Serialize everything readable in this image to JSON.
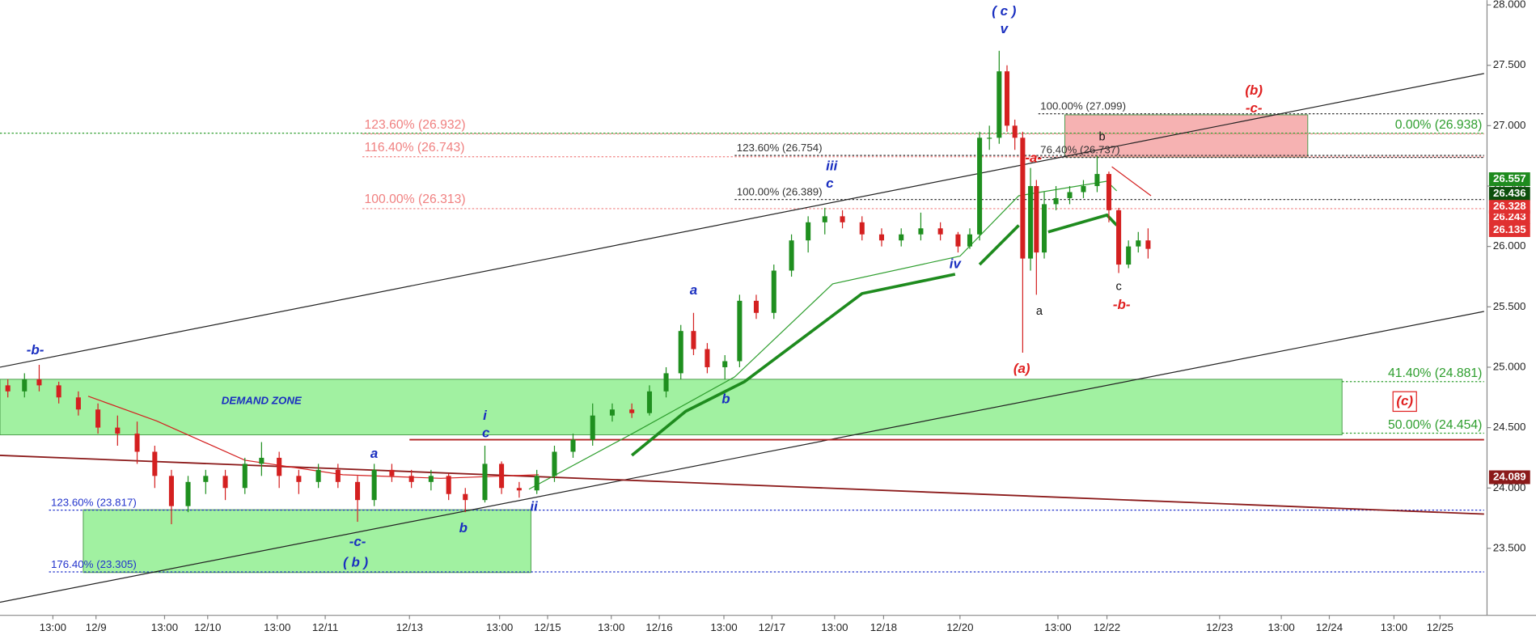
{
  "chart_data": {
    "type": "candlestick",
    "xlim": [
      0,
      1515
    ],
    "ylim": [
      22.97,
      28.04
    ],
    "xticks": [
      {
        "value": 54,
        "label": "13:00"
      },
      {
        "value": 98,
        "label": "12/9"
      },
      {
        "value": 168,
        "label": "13:00"
      },
      {
        "value": 212,
        "label": "12/10"
      },
      {
        "value": 283,
        "label": "13:00"
      },
      {
        "value": 332,
        "label": "12/11"
      },
      {
        "value": 418,
        "label": "12/13"
      },
      {
        "value": 510,
        "label": "13:00"
      },
      {
        "value": 559,
        "label": "12/15"
      },
      {
        "value": 624,
        "label": "13:00"
      },
      {
        "value": 673,
        "label": "12/16"
      },
      {
        "value": 739,
        "label": "13:00"
      },
      {
        "value": 788,
        "label": "12/17"
      },
      {
        "value": 852,
        "label": "13:00"
      },
      {
        "value": 902,
        "label": "12/18"
      },
      {
        "value": 980,
        "label": "12/20"
      },
      {
        "value": 1080,
        "label": "13:00"
      },
      {
        "value": 1130,
        "label": "12/22"
      },
      {
        "value": 1245,
        "label": "12/23"
      },
      {
        "value": 1308,
        "label": "13:00"
      },
      {
        "value": 1357,
        "label": "12/24"
      },
      {
        "value": 1423,
        "label": "13:00"
      },
      {
        "value": 1470,
        "label": "12/25"
      }
    ],
    "yticks": [
      {
        "value": 23.5,
        "label": "23.500"
      },
      {
        "value": 24,
        "label": "24.000"
      },
      {
        "value": 24.5,
        "label": "24.500"
      },
      {
        "value": 25,
        "label": "25.000"
      },
      {
        "value": 25.5,
        "label": "25.500"
      },
      {
        "value": 26,
        "label": "26.000"
      },
      {
        "value": 26.5,
        "label": "26.500"
      },
      {
        "value": 27,
        "label": "27.000"
      },
      {
        "value": 27.5,
        "label": "27.500"
      },
      {
        "value": 28,
        "label": "28.000"
      }
    ],
    "up_color": "#1f8f1f",
    "down_color": "#d42020",
    "x": [
      8,
      25,
      40,
      60,
      80,
      100,
      120,
      140,
      158,
      175,
      192,
      210,
      230,
      250,
      267,
      285,
      305,
      325,
      345,
      365,
      382,
      400,
      420,
      440,
      458,
      475,
      495,
      512,
      530,
      548,
      566,
      585,
      605,
      625,
      645,
      663,
      680,
      695,
      708,
      722,
      740,
      755,
      772,
      790,
      808,
      825,
      842,
      860,
      880,
      900,
      920,
      940,
      960,
      978,
      990,
      1000,
      1010,
      1020,
      1028,
      1036,
      1044,
      1052,
      1058,
      1066,
      1078,
      1092,
      1106,
      1120,
      1132,
      1142,
      1152,
      1162,
      1172
    ],
    "open": [
      24.85,
      24.8,
      24.9,
      24.85,
      24.75,
      24.65,
      24.5,
      24.45,
      24.3,
      24.1,
      23.85,
      24.05,
      24.1,
      24.0,
      24.2,
      24.25,
      24.1,
      24.05,
      24.15,
      24.05,
      23.9,
      24.15,
      24.1,
      24.05,
      24.1,
      23.95,
      23.9,
      24.2,
      24.0,
      23.98,
      24.1,
      24.3,
      24.4,
      24.6,
      24.65,
      24.62,
      24.8,
      24.95,
      25.3,
      25.15,
      25.0,
      25.05,
      25.55,
      25.45,
      25.8,
      26.05,
      26.2,
      26.25,
      26.2,
      26.1,
      26.05,
      26.1,
      26.15,
      26.1,
      26.0,
      26.1,
      26.9,
      26.9,
      27.45,
      27.0,
      26.9,
      25.9,
      26.5,
      25.95,
      26.35,
      26.4,
      26.45,
      26.5,
      26.6,
      26.3,
      25.85,
      26.0,
      26.05
    ],
    "high": [
      24.9,
      24.95,
      25.02,
      24.88,
      24.8,
      24.7,
      24.6,
      24.55,
      24.35,
      24.15,
      24.1,
      24.15,
      24.15,
      24.25,
      24.38,
      24.3,
      24.15,
      24.2,
      24.2,
      24.1,
      24.2,
      24.2,
      24.15,
      24.15,
      24.12,
      24.0,
      24.35,
      24.22,
      24.05,
      24.15,
      24.35,
      24.45,
      24.7,
      24.7,
      24.7,
      24.85,
      25.0,
      25.35,
      25.45,
      25.2,
      25.1,
      25.6,
      25.6,
      25.85,
      26.1,
      26.25,
      26.32,
      26.3,
      26.25,
      26.15,
      26.15,
      26.28,
      26.2,
      26.12,
      26.15,
      26.95,
      27.0,
      27.62,
      27.5,
      27.05,
      26.95,
      26.65,
      26.55,
      26.45,
      26.5,
      26.5,
      26.55,
      26.75,
      26.62,
      26.32,
      26.05,
      26.12,
      26.15
    ],
    "low": [
      24.75,
      24.75,
      24.8,
      24.7,
      24.6,
      24.45,
      24.35,
      24.2,
      24.0,
      23.7,
      23.8,
      23.95,
      23.9,
      23.95,
      24.1,
      24.0,
      23.95,
      24.0,
      24.0,
      23.72,
      23.85,
      24.05,
      24.0,
      23.98,
      23.9,
      23.8,
      23.88,
      23.95,
      23.92,
      23.95,
      24.05,
      24.25,
      24.35,
      24.55,
      24.58,
      24.6,
      24.75,
      24.9,
      25.1,
      24.95,
      24.9,
      25.0,
      25.4,
      25.4,
      25.75,
      25.95,
      26.1,
      26.15,
      26.05,
      26.0,
      26.0,
      26.05,
      26.05,
      25.95,
      25.98,
      26.05,
      26.8,
      26.85,
      26.95,
      26.8,
      25.12,
      25.8,
      25.6,
      25.9,
      26.3,
      26.35,
      26.4,
      26.45,
      26.2,
      25.78,
      25.82,
      25.95,
      25.9
    ],
    "close": [
      24.8,
      24.9,
      24.85,
      24.75,
      24.65,
      24.5,
      24.45,
      24.3,
      24.1,
      23.85,
      24.05,
      24.1,
      24.0,
      24.2,
      24.25,
      24.1,
      24.05,
      24.15,
      24.05,
      23.9,
      24.15,
      24.1,
      24.05,
      24.1,
      23.95,
      23.9,
      24.2,
      24.0,
      23.98,
      24.1,
      24.3,
      24.4,
      24.6,
      24.65,
      24.62,
      24.8,
      24.95,
      25.3,
      25.15,
      25.0,
      25.05,
      25.55,
      25.45,
      25.8,
      26.05,
      26.2,
      26.25,
      26.2,
      26.1,
      26.05,
      26.1,
      26.15,
      26.1,
      26.0,
      26.1,
      26.9,
      26.9,
      27.45,
      27.0,
      26.9,
      25.9,
      26.5,
      25.95,
      26.35,
      26.4,
      26.45,
      26.5,
      26.6,
      26.3,
      25.85,
      26.0,
      26.05,
      25.98
    ],
    "moving_averages": [
      {
        "color": "#1e8b1e",
        "style": "thick",
        "x": [
          645,
          700,
          760,
          820,
          880,
          975,
          null,
          1000,
          1040,
          null,
          1070,
          1130,
          1140
        ],
        "values": [
          24.27,
          24.635,
          24.88,
          25.245,
          25.61,
          25.77,
          null,
          25.85,
          26.175,
          null,
          26.12,
          26.26,
          26.175
        ]
      },
      {
        "color": "#2e9e2e",
        "style": "thin",
        "x": [
          540,
          650,
          750,
          850,
          980,
          1040,
          1130,
          1140
        ],
        "values": [
          23.99,
          24.47,
          24.92,
          25.69,
          25.92,
          26.42,
          26.54,
          26.46
        ]
      },
      {
        "color": "#d42020",
        "style": "thin",
        "x": [
          90,
          160,
          250,
          350,
          450,
          550,
          null,
          1135,
          1175
        ],
        "values": [
          24.76,
          24.555,
          24.23,
          24.11,
          24.08,
          24.11,
          null,
          26.66,
          26.42
        ]
      }
    ],
    "zones": [
      {
        "label": "DEMAND ZONE",
        "x_range": [
          0,
          1370
        ],
        "y_range": [
          24.44,
          24.9
        ],
        "color": "#90ee90"
      },
      {
        "x_range": [
          85,
          542
        ],
        "y_range": [
          23.3,
          23.82
        ],
        "color": "#90ee90"
      },
      {
        "x_range": [
          1087,
          1335
        ],
        "y_range": [
          26.74,
          27.09
        ],
        "color": "#f4a4a4"
      }
    ],
    "trendlines": [
      {
        "x": [
          0,
          1515
        ],
        "y": [
          25.0,
          27.432
        ],
        "color": "#222222"
      },
      {
        "x": [
          0,
          1515
        ],
        "y": [
          23.054,
          25.462
        ],
        "color": "#222222"
      },
      {
        "x": [
          0,
          1515
        ],
        "y": [
          24.27,
          23.784
        ],
        "color": "#8b1a1a"
      },
      {
        "x": [
          418,
          1515
        ],
        "y": [
          24.4,
          24.4
        ],
        "color": "#b22222"
      }
    ],
    "levels": [
      {
        "label": "123.60% (26.932)",
        "value": 26.932,
        "color": "#f08080",
        "x_start": 370,
        "align": "left"
      },
      {
        "label": "116.40% (26.743)",
        "value": 26.743,
        "color": "#f08080",
        "x_start": 370,
        "align": "left"
      },
      {
        "label": "100.00% (26.313)",
        "value": 26.313,
        "color": "#f08080",
        "x_start": 370,
        "align": "left"
      },
      {
        "label": "123.60% (26.754)",
        "value": 26.754,
        "color": "#333333",
        "x_start": 750,
        "align": "left"
      },
      {
        "label": "100.00% (26.389)",
        "value": 26.389,
        "color": "#333333",
        "x_start": 750,
        "align": "left"
      },
      {
        "label": "100.00% (27.099)",
        "value": 27.099,
        "color": "#333333",
        "x_start": 1060,
        "align": "left"
      },
      {
        "label": "76.40% (26.737)",
        "value": 26.737,
        "color": "#333333",
        "x_start": 1060,
        "align": "left"
      },
      {
        "label": "0.00% (26.938)",
        "value": 26.938,
        "color": "#2e9e2e",
        "x_start": 0,
        "align": "right"
      },
      {
        "label": "41.40% (24.881)",
        "value": 24.881,
        "color": "#2e9e2e",
        "x_start": 1370,
        "align": "right"
      },
      {
        "label": "50.00% (24.454)",
        "value": 24.454,
        "color": "#2e9e2e",
        "x_start": 1370,
        "align": "right"
      },
      {
        "label": "123.60% (23.817)",
        "value": 23.817,
        "color": "#2233cc",
        "x_start": 50,
        "align": "left"
      },
      {
        "label": "176.40% (23.305)",
        "value": 23.305,
        "color": "#2233cc",
        "x_start": 50,
        "align": "left"
      }
    ],
    "annotations": [
      {
        "text": "-b-",
        "x": 36,
        "y": 25.138,
        "color": "#1a2fc0"
      },
      {
        "text": "i",
        "x": 495,
        "y": 24.594,
        "color": "#1a2fc0"
      },
      {
        "text": "c",
        "x": 496,
        "y": 24.449,
        "color": "#1a2fc0"
      },
      {
        "text": "a",
        "x": 382,
        "y": 24.278,
        "color": "#1a2fc0"
      },
      {
        "text": "b",
        "x": 473,
        "y": 23.662,
        "color": "#1a2fc0"
      },
      {
        "text": "ii",
        "x": 545,
        "y": 23.84,
        "color": "#1a2fc0"
      },
      {
        "text": "-c-",
        "x": 365,
        "y": 23.549,
        "color": "#1a2fc0"
      },
      {
        "text": "( b )",
        "x": 363,
        "y": 23.378,
        "color": "#1a2fc0"
      },
      {
        "text": "a",
        "x": 708,
        "y": 25.632,
        "color": "#1a2fc0"
      },
      {
        "text": "b",
        "x": 741,
        "y": 24.732,
        "color": "#1a2fc0"
      },
      {
        "text": "iii",
        "x": 849,
        "y": 26.662,
        "color": "#1a2fc0"
      },
      {
        "text": "c",
        "x": 847,
        "y": 26.516,
        "color": "#1a2fc0"
      },
      {
        "text": "iv",
        "x": 975,
        "y": 25.851,
        "color": "#1a2fc0"
      },
      {
        "text": "( c )",
        "x": 1025,
        "y": 27.943,
        "color": "#1a2fc0"
      },
      {
        "text": "v",
        "x": 1025,
        "y": 27.797,
        "color": "#1a2fc0"
      },
      {
        "text": "(b)",
        "x": 1280,
        "y": 27.286,
        "color": "#e02020"
      },
      {
        "text": "-c-",
        "x": 1280,
        "y": 27.141,
        "color": "#e02020"
      },
      {
        "text": "-a-",
        "x": 1055,
        "y": 26.727,
        "color": "#e02020"
      },
      {
        "text": "(a)",
        "x": 1043,
        "y": 24.984,
        "color": "#e02020"
      },
      {
        "text": "-b-",
        "x": 1145,
        "y": 25.511,
        "color": "#e02020"
      },
      {
        "text": "(c)",
        "x": 1434,
        "y": 24.716,
        "color": "#e02020",
        "boxed": true
      },
      {
        "text": "a",
        "x": 1061,
        "y": 25.462,
        "color": "#111111"
      },
      {
        "text": "b",
        "x": 1125,
        "y": 26.905,
        "color": "#111111"
      },
      {
        "text": "c",
        "x": 1142,
        "y": 25.665,
        "color": "#111111"
      }
    ],
    "price_markers": [
      {
        "value": 26.557,
        "color": "#1e8b1e"
      },
      {
        "value": 26.436,
        "color": "#0d4f0d"
      },
      {
        "value": 26.243,
        "color": "#e03030"
      },
      {
        "value": 26.328,
        "color": "#e03030"
      },
      {
        "value": 26.135,
        "color": "#e03030"
      },
      {
        "value": 24.089,
        "color": "#8b1a1a"
      }
    ]
  }
}
